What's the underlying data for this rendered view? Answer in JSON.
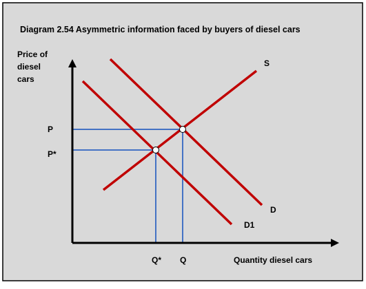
{
  "title": "Diagram 2.54 Asymmetric information faced by buyers of diesel cars",
  "y_axis_label": [
    "Price of",
    "diesel",
    "cars"
  ],
  "x_axis_label": "Quantity diesel cars",
  "curves": {
    "supply": "S",
    "demand": "D",
    "demand_reduced": "D1"
  },
  "price_labels": {
    "p": "P",
    "p_star": "P*"
  },
  "quantity_labels": {
    "q": "Q",
    "q_star": "Q*"
  },
  "colors": {
    "background": "#d9d9d9",
    "curve": "#c00000",
    "guide": "#4472c4",
    "axis": "#000000",
    "border": "#000000",
    "equilibrium_point": "#ffffff"
  }
}
